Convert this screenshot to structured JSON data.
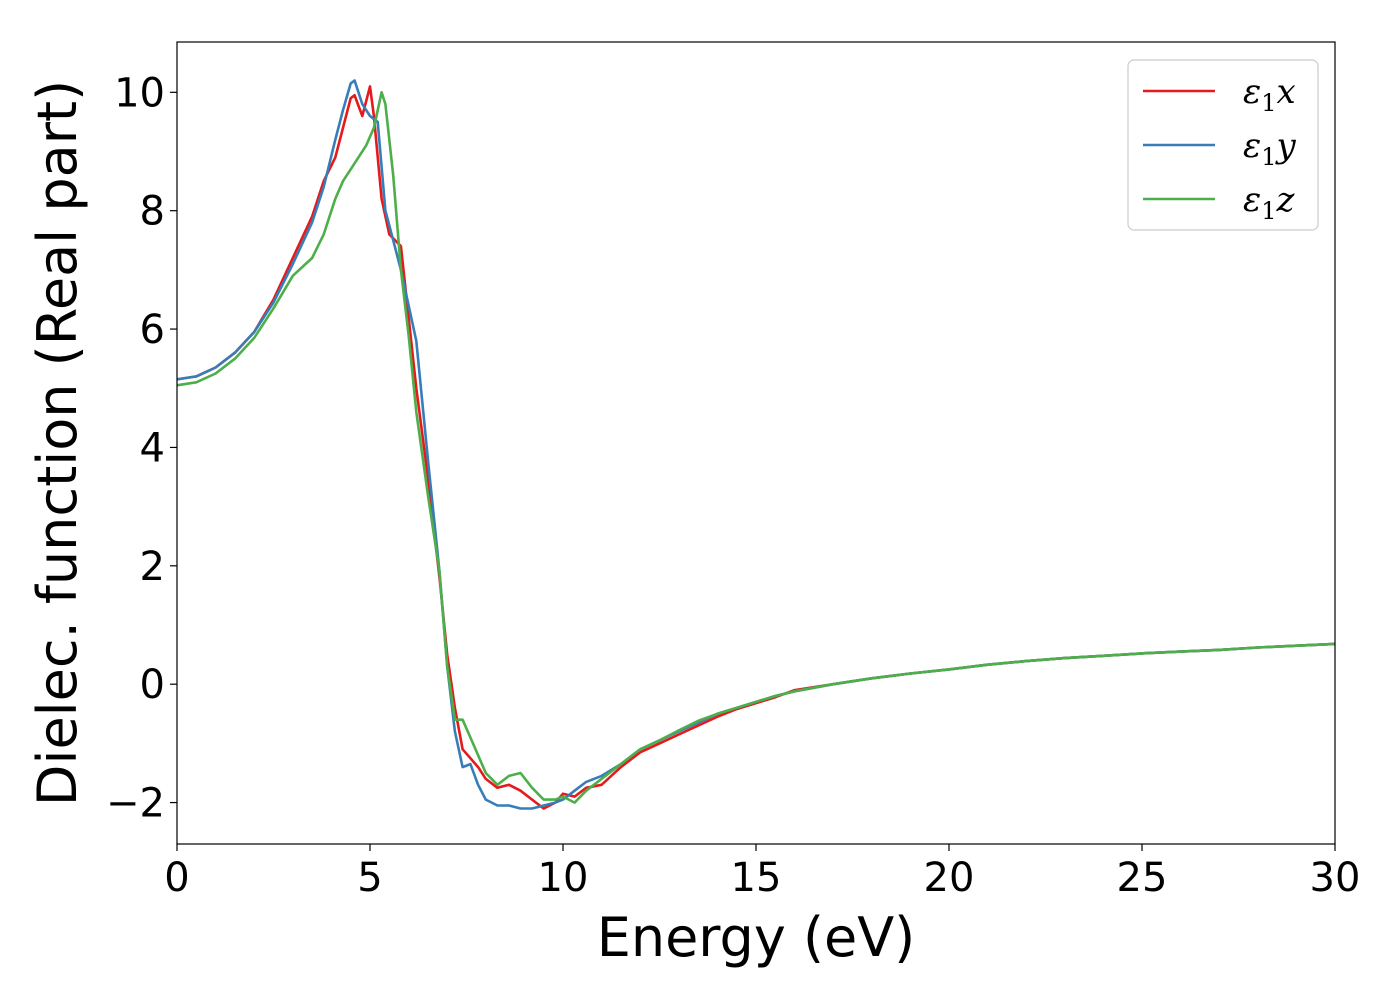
{
  "chart_data": {
    "type": "line",
    "xlabel": "Energy (eV)",
    "ylabel": "Dielec. function (Real part)",
    "xlim": [
      0,
      30
    ],
    "ylim": [
      -2.7,
      10.85
    ],
    "xticks": [
      0,
      5,
      10,
      15,
      20,
      25,
      30
    ],
    "xtick_labels": [
      "0",
      "5",
      "10",
      "15",
      "20",
      "25",
      "30"
    ],
    "yticks": [
      -2,
      0,
      2,
      4,
      6,
      8,
      10
    ],
    "ytick_labels": [
      "−2",
      "0",
      "2",
      "4",
      "6",
      "8",
      "10"
    ],
    "grid": false,
    "legend_position": "top-right",
    "series": [
      {
        "name": "ε1x",
        "legend_main": "ε",
        "legend_sub": "1",
        "legend_tail": "x",
        "color": "#e41a1c",
        "x": [
          0,
          0.5,
          1,
          1.5,
          2,
          2.5,
          3,
          3.5,
          3.8,
          4.1,
          4.3,
          4.5,
          4.6,
          4.8,
          5.0,
          5.1,
          5.3,
          5.5,
          5.8,
          6.0,
          6.2,
          6.5,
          6.8,
          7.0,
          7.2,
          7.4,
          7.6,
          7.8,
          8.0,
          8.3,
          8.6,
          8.9,
          9.2,
          9.5,
          9.8,
          10.0,
          10.3,
          10.6,
          11.0,
          11.5,
          12.0,
          12.5,
          13.0,
          13.5,
          14.0,
          14.5,
          15.0,
          15.5,
          16.0,
          17.0,
          18.0,
          19.0,
          20.0,
          21.0,
          22.0,
          23.0,
          24.0,
          25.0,
          26.0,
          27.0,
          28.0,
          29.0,
          30.0
        ],
        "y": [
          5.15,
          5.2,
          5.35,
          5.6,
          5.95,
          6.5,
          7.2,
          7.9,
          8.5,
          8.9,
          9.4,
          9.9,
          9.95,
          9.6,
          10.1,
          9.6,
          8.2,
          7.6,
          7.4,
          6.2,
          5.0,
          3.5,
          1.8,
          0.5,
          -0.4,
          -1.1,
          -1.25,
          -1.4,
          -1.6,
          -1.75,
          -1.7,
          -1.8,
          -1.95,
          -2.1,
          -2.0,
          -1.85,
          -1.9,
          -1.75,
          -1.7,
          -1.4,
          -1.15,
          -1.0,
          -0.85,
          -0.7,
          -0.55,
          -0.42,
          -0.32,
          -0.22,
          -0.1,
          0.0,
          0.1,
          0.18,
          0.25,
          0.33,
          0.39,
          0.44,
          0.48,
          0.52,
          0.55,
          0.58,
          0.62,
          0.65,
          0.68
        ]
      },
      {
        "name": "ε1y",
        "legend_main": "ε",
        "legend_sub": "1",
        "legend_tail": "y",
        "color": "#377eb8",
        "x": [
          0,
          0.5,
          1,
          1.5,
          2,
          2.5,
          3,
          3.5,
          3.8,
          4.1,
          4.3,
          4.5,
          4.6,
          4.8,
          5.0,
          5.2,
          5.4,
          5.6,
          5.8,
          6.0,
          6.2,
          6.5,
          6.8,
          7.0,
          7.2,
          7.4,
          7.6,
          7.8,
          8.0,
          8.3,
          8.6,
          8.9,
          9.2,
          9.5,
          9.8,
          10.0,
          10.3,
          10.6,
          11.0,
          11.5,
          12.0,
          12.5,
          13.0,
          13.5,
          14.0,
          14.5,
          15.0,
          15.5,
          16.0,
          17.0,
          18.0,
          19.0,
          20.0,
          21.0,
          22.0,
          23.0,
          24.0,
          25.0,
          26.0,
          27.0,
          28.0,
          29.0,
          30.0
        ],
        "y": [
          5.15,
          5.2,
          5.35,
          5.6,
          5.95,
          6.45,
          7.1,
          7.8,
          8.4,
          9.2,
          9.7,
          10.15,
          10.2,
          9.8,
          9.6,
          9.5,
          8.0,
          7.5,
          7.0,
          6.4,
          5.8,
          3.8,
          1.9,
          0.3,
          -0.8,
          -1.4,
          -1.35,
          -1.7,
          -1.95,
          -2.05,
          -2.05,
          -2.1,
          -2.1,
          -2.05,
          -2.0,
          -1.95,
          -1.8,
          -1.65,
          -1.55,
          -1.35,
          -1.1,
          -0.95,
          -0.8,
          -0.65,
          -0.5,
          -0.4,
          -0.3,
          -0.2,
          -0.12,
          0.0,
          0.1,
          0.18,
          0.25,
          0.33,
          0.39,
          0.44,
          0.48,
          0.52,
          0.55,
          0.58,
          0.62,
          0.65,
          0.68
        ]
      },
      {
        "name": "ε1z",
        "legend_main": "ε",
        "legend_sub": "1",
        "legend_tail": "z",
        "color": "#4daf4a",
        "x": [
          0,
          0.5,
          1,
          1.5,
          2,
          2.5,
          3,
          3.5,
          3.8,
          4.1,
          4.3,
          4.5,
          4.7,
          4.9,
          5.1,
          5.3,
          5.4,
          5.6,
          5.8,
          6.0,
          6.2,
          6.5,
          6.8,
          7.0,
          7.2,
          7.4,
          7.6,
          7.8,
          8.0,
          8.3,
          8.6,
          8.9,
          9.2,
          9.5,
          9.8,
          10.0,
          10.3,
          10.6,
          11.0,
          11.5,
          12.0,
          12.5,
          13.0,
          13.5,
          14.0,
          14.5,
          15.0,
          15.5,
          16.0,
          17.0,
          18.0,
          19.0,
          20.0,
          21.0,
          22.0,
          23.0,
          24.0,
          25.0,
          26.0,
          27.0,
          28.0,
          29.0,
          30.0
        ],
        "y": [
          5.05,
          5.1,
          5.25,
          5.5,
          5.85,
          6.35,
          6.9,
          7.2,
          7.6,
          8.2,
          8.5,
          8.7,
          8.9,
          9.1,
          9.4,
          10.0,
          9.8,
          8.6,
          7.0,
          5.9,
          4.6,
          3.2,
          1.9,
          0.3,
          -0.6,
          -0.6,
          -0.9,
          -1.2,
          -1.5,
          -1.7,
          -1.55,
          -1.5,
          -1.75,
          -1.95,
          -1.95,
          -1.9,
          -2.0,
          -1.8,
          -1.6,
          -1.35,
          -1.1,
          -0.95,
          -0.78,
          -0.62,
          -0.5,
          -0.4,
          -0.3,
          -0.2,
          -0.12,
          0.0,
          0.1,
          0.18,
          0.25,
          0.33,
          0.39,
          0.44,
          0.48,
          0.52,
          0.55,
          0.58,
          0.62,
          0.65,
          0.68
        ]
      }
    ]
  }
}
